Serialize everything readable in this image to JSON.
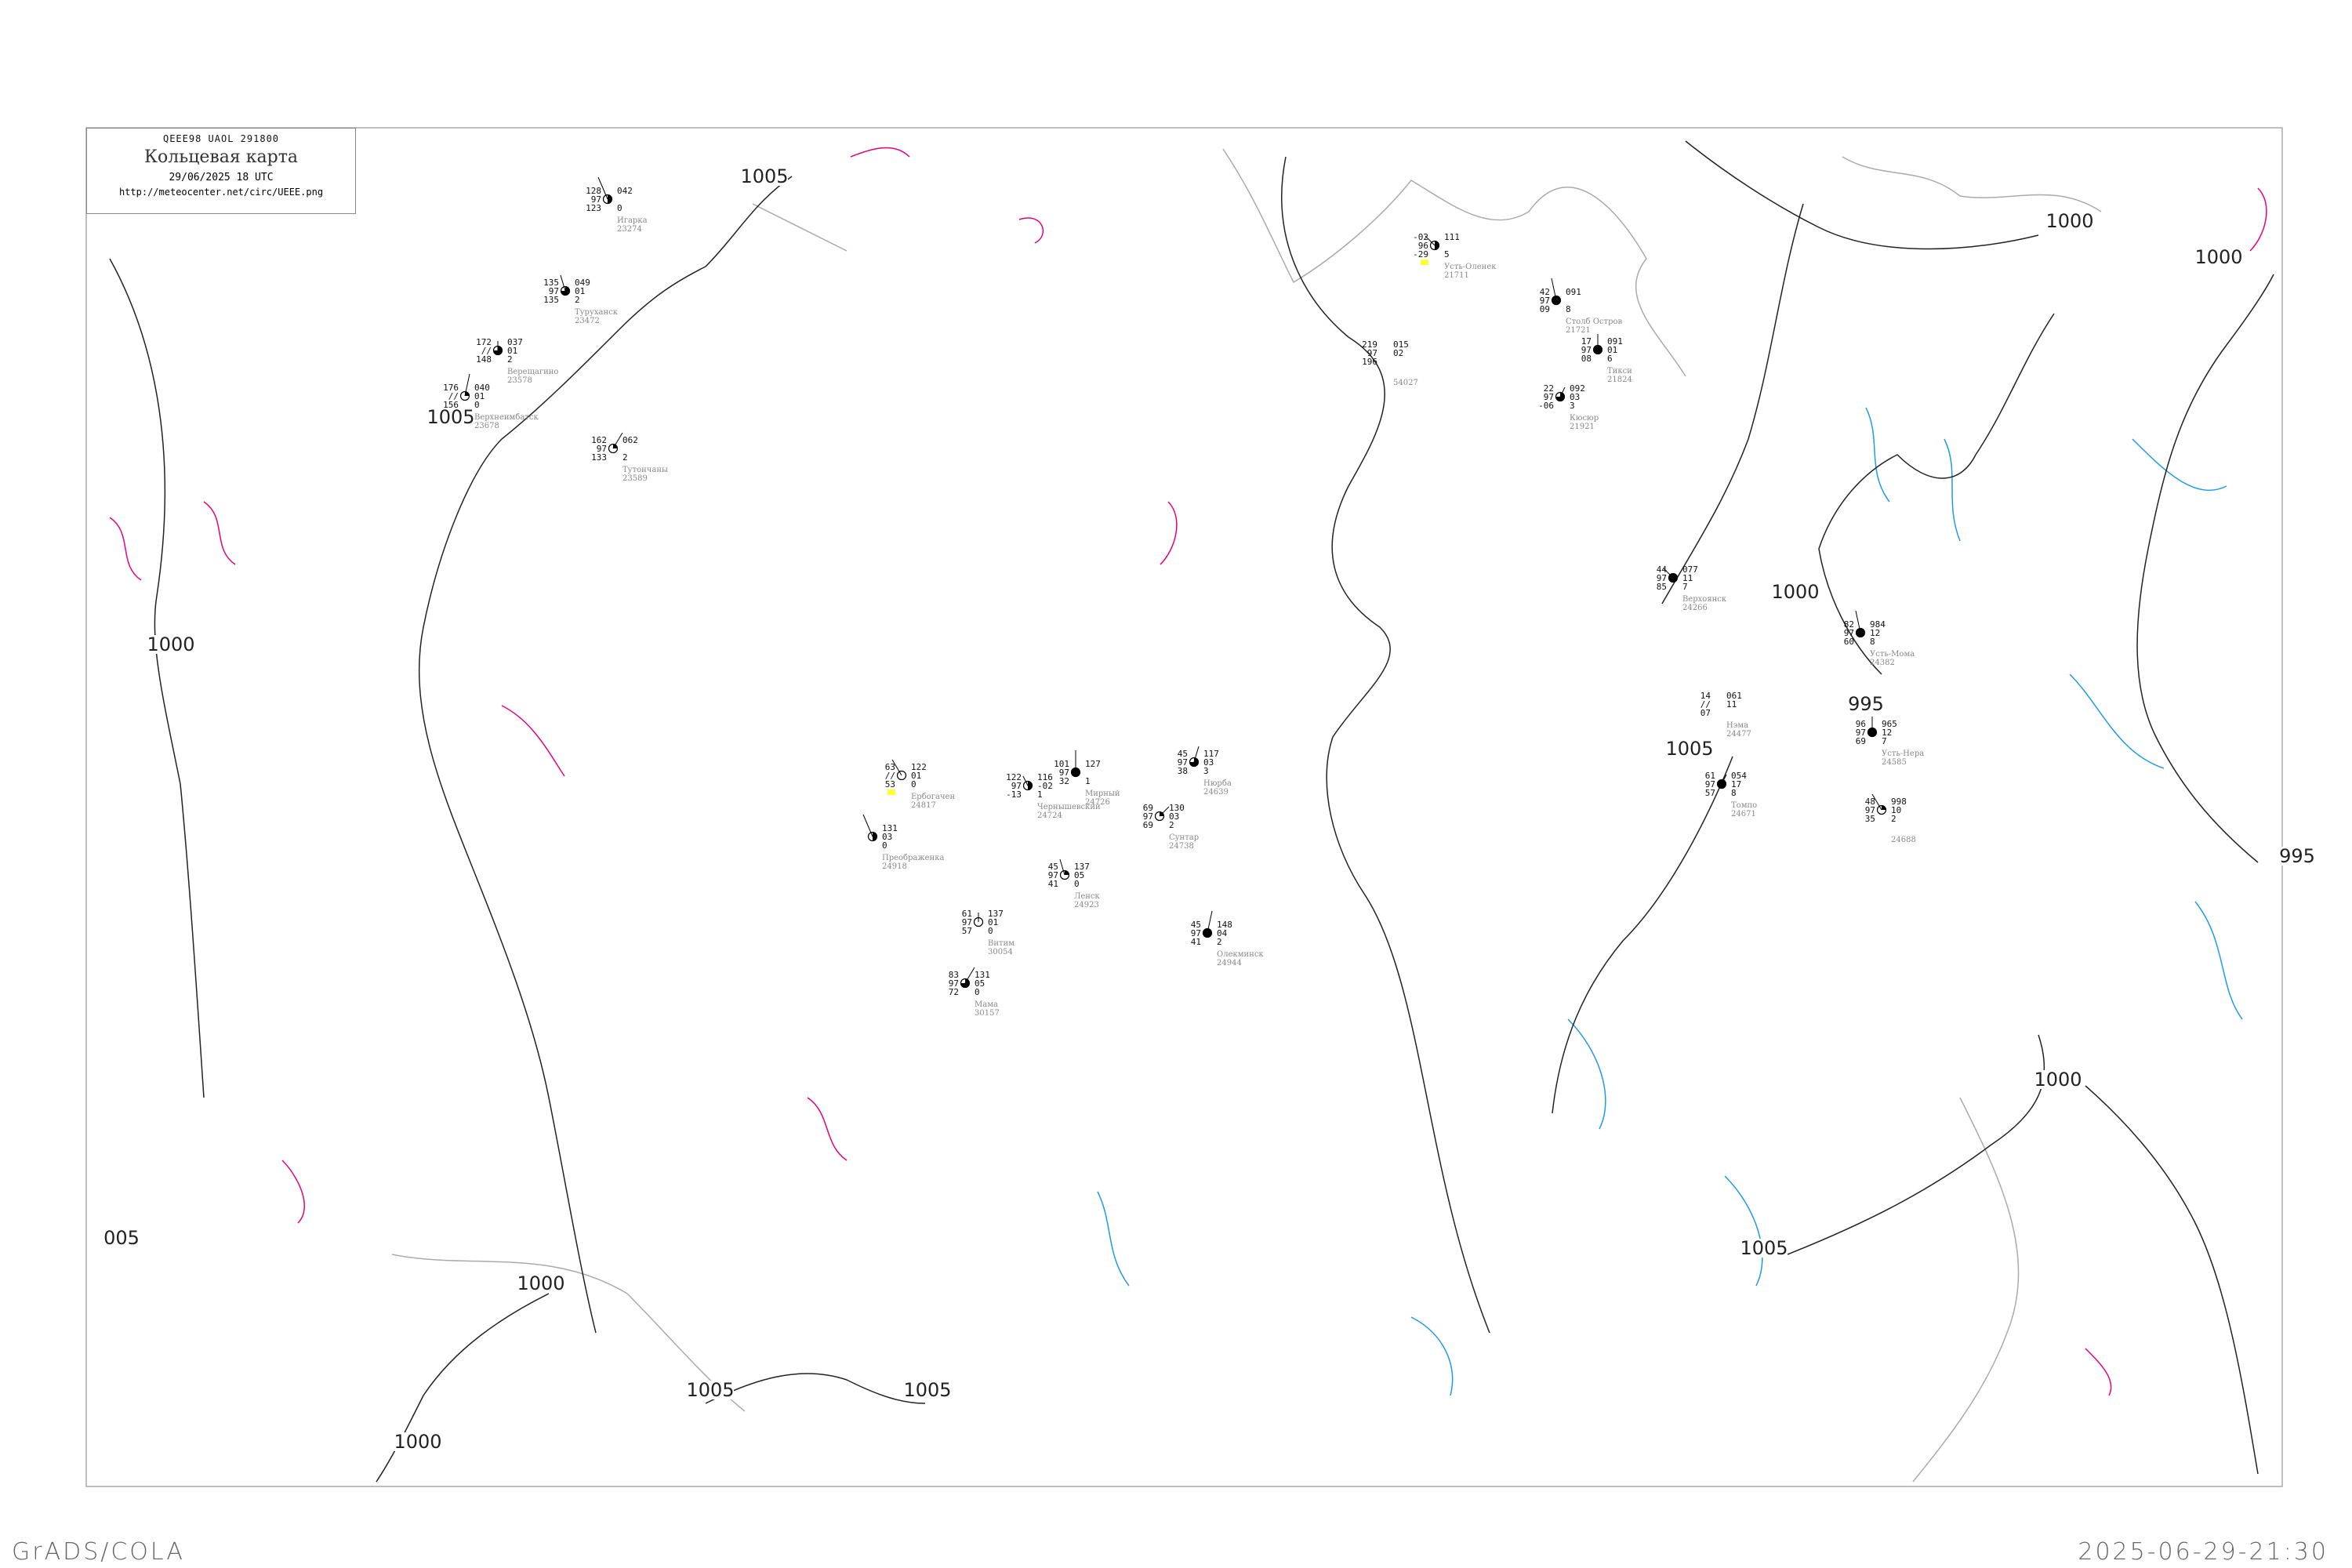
{
  "header": {
    "code": "QEEE98  UAOL  291800",
    "title": "Кольцевая карта",
    "datetime": "29/06/2025 18 UTC",
    "url": "http://meteocenter.net/circ/UEEE.png"
  },
  "footer": {
    "left": "GrADS/COLA",
    "right": "2025-06-29-21:30"
  },
  "colors": {
    "isobar": "#222222",
    "coast": "#aaaaaa",
    "warm_isallobar": "#e6007e",
    "cold_isallobar": "#1e9be6",
    "precip_highlight": "#ffff33"
  },
  "isobar_labels": [
    "1005",
    "1005",
    "1000",
    "1000",
    "1000",
    "1000",
    "995",
    "1005",
    "995",
    "1000",
    "1005",
    "1000",
    "1005",
    "1005",
    "005",
    "1000"
  ],
  "stations": [
    {
      "name": "Игарка",
      "id": "23274",
      "t": "128",
      "v": "97",
      "td": "123",
      "p": "042",
      "dp": "",
      "r": "0",
      "cloud_cover": 0.5
    },
    {
      "name": "Туруханск",
      "id": "23472",
      "t": "135",
      "v": "97",
      "td": "135",
      "p": "049",
      "dp": "01",
      "r": "2",
      "cloud_cover": 0.75
    },
    {
      "name": "Верещагино",
      "id": "23578",
      "t": "172",
      "v": "//",
      "td": "148",
      "p": "037",
      "dp": "01",
      "r": "2",
      "cloud_cover": 0.75
    },
    {
      "name": "Верхнеимбатск",
      "id": "23678",
      "t": "176",
      "v": "//",
      "td": "156",
      "p": "040",
      "dp": "01",
      "r": "0",
      "cloud_cover": 0.25
    },
    {
      "name": "Тутончаны",
      "id": "23589",
      "t": "162",
      "v": "97",
      "td": "133",
      "p": "062",
      "dp": "",
      "r": "2",
      "cloud_cover": 0.25
    },
    {
      "name": "Усть-Оленек",
      "id": "21711",
      "t": "-02",
      "v": "96",
      "td": "-29",
      "p": "111",
      "dp": "",
      "r": "5",
      "cloud_cover": 0.5
    },
    {
      "name": "Столб Остров",
      "id": "21721",
      "t": "42",
      "v": "97",
      "td": "09",
      "p": "091",
      "dp": "",
      "r": "8",
      "cloud_cover": 1
    },
    {
      "name": "Тикси",
      "id": "21824",
      "t": "17",
      "v": "97",
      "td": "08",
      "p": "091",
      "dp": "01",
      "r": "6",
      "cloud_cover": 1
    },
    {
      "name": "Кюсюр",
      "id": "21921",
      "t": "22",
      "v": "97",
      "td": "-06",
      "p": "092",
      "dp": "03",
      "r": "3",
      "cloud_cover": 0.75
    },
    {
      "name": "",
      "id": "54027",
      "t": "219",
      "v": "97",
      "td": "196",
      "p": "015",
      "dp": "02",
      "r": "",
      "cloud_cover": null
    },
    {
      "name": "Ербогачен",
      "id": "24817",
      "t": "63",
      "v": "//",
      "td": "53",
      "p": "122",
      "dp": "01",
      "r": "0",
      "cloud_cover": 0
    },
    {
      "name": "Чернышевский",
      "id": "24724",
      "t": "122",
      "v": "97",
      "td": "-13",
      "p": "116",
      "dp": "-02",
      "r": "1",
      "cloud_cover": 0.5
    },
    {
      "name": "Мирный",
      "id": "24726",
      "t": "101",
      "v": "97",
      "td": "32",
      "p": "127",
      "dp": "",
      "r": "1",
      "cloud_cover": 1
    },
    {
      "name": "Нюрба",
      "id": "24639",
      "t": "45",
      "v": "97",
      "td": "38",
      "p": "117",
      "dp": "03",
      "r": "3",
      "cloud_cover": 0.75
    },
    {
      "name": "Сунтар",
      "id": "24738",
      "t": "69",
      "v": "97",
      "td": "69",
      "p": "130",
      "dp": "03",
      "r": "2",
      "cloud_cover": 0.25
    },
    {
      "name": "Преображенка",
      "id": "24918",
      "t": "",
      "v": "",
      "td": "",
      "p": "131",
      "dp": "03",
      "r": "0",
      "cloud_cover": 0.5
    },
    {
      "name": "Ленск",
      "id": "24923",
      "t": "45",
      "v": "97",
      "td": "41",
      "p": "137",
      "dp": "05",
      "r": "0",
      "cloud_cover": 0.25
    },
    {
      "name": "Витим",
      "id": "30054",
      "t": "61",
      "v": "97",
      "td": "57",
      "p": "137",
      "dp": "01",
      "r": "0",
      "cloud_cover": 0
    },
    {
      "name": "Олекминск",
      "id": "24944",
      "t": "45",
      "v": "97",
      "td": "41",
      "p": "148",
      "dp": "04",
      "r": "2",
      "cloud_cover": 1
    },
    {
      "name": "Мама",
      "id": "30157",
      "t": "83",
      "v": "97",
      "td": "72",
      "p": "131",
      "dp": "05",
      "r": "0",
      "cloud_cover": 0.75
    },
    {
      "name": "Верхоянск",
      "id": "24266",
      "t": "44",
      "v": "97",
      "td": "85",
      "p": "077",
      "dp": "11",
      "r": "7",
      "cloud_cover": 1
    },
    {
      "name": "Усть-Мома",
      "id": "24382",
      "t": "82",
      "v": "97",
      "td": "60",
      "p": "984",
      "dp": "12",
      "r": "8",
      "cloud_cover": 1
    },
    {
      "name": "Усть-Нера",
      "id": "24585",
      "t": "96",
      "v": "97",
      "td": "69",
      "p": "965",
      "dp": "12",
      "r": "7",
      "cloud_cover": 1
    },
    {
      "name": "Томпо",
      "id": "24671",
      "t": "61",
      "v": "97",
      "td": "57",
      "p": "054",
      "dp": "17",
      "r": "8",
      "cloud_cover": 1
    },
    {
      "name": "Нэма",
      "id": "24477",
      "t": "14",
      "v": "//",
      "td": "07",
      "p": "061",
      "dp": "11",
      "r": "",
      "cloud_cover": null
    },
    {
      "name": "",
      "id": "24688",
      "t": "48",
      "v": "97",
      "td": "35",
      "p": "998",
      "dp": "10",
      "r": "2",
      "cloud_cover": 0.25
    }
  ]
}
